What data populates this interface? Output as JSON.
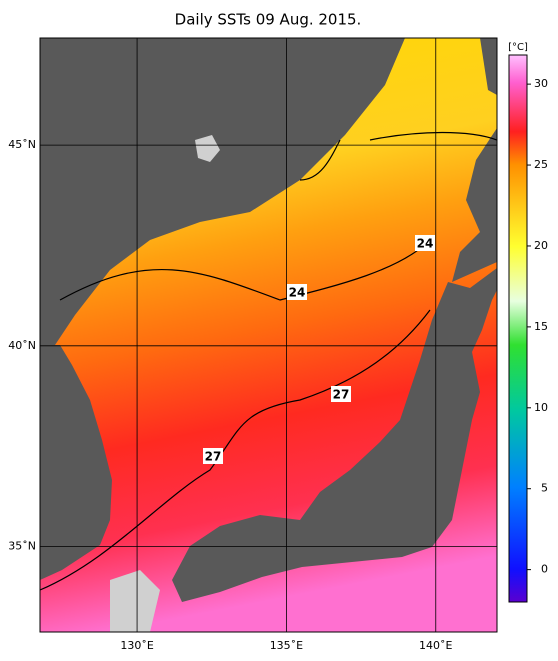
{
  "title": "Daily SSTs 09 Aug. 2015.",
  "map": {
    "lon_range": [
      126.75,
      142.05
    ],
    "lat_range": [
      32.87,
      47.67
    ],
    "lon_ticks": [
      {
        "value": 130,
        "label": "130˚E"
      },
      {
        "value": 135,
        "label": "135˚E"
      },
      {
        "value": 140,
        "label": "140˚E"
      }
    ],
    "lat_ticks": [
      {
        "value": 35,
        "label": "35˚N"
      },
      {
        "value": 40,
        "label": "40˚N"
      },
      {
        "value": 45,
        "label": "45˚N"
      }
    ],
    "contour_labels": [
      24,
      24,
      27,
      27
    ]
  },
  "colorbar": {
    "label": "[°C]",
    "range": [
      -2,
      31.8
    ],
    "ticks": [
      0,
      5,
      10,
      15,
      20,
      25,
      30
    ]
  }
}
